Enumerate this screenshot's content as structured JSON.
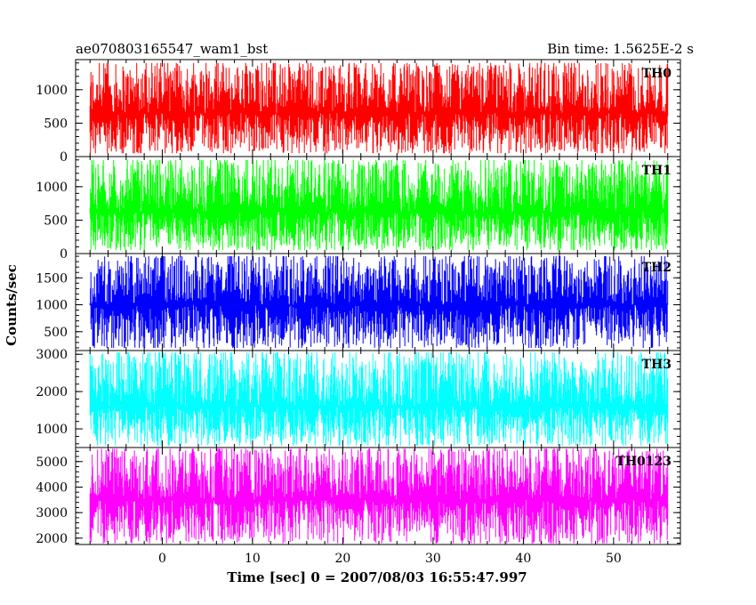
{
  "chart_data": {
    "type": "line",
    "title_left": "ae070803165547_wam1_bst",
    "title_right": "Bin time: 1.5625E-2 s",
    "xlabel": "Time [sec] 0 = 2007/08/03 16:55:47.997",
    "ylabel": "Counts/sec",
    "x_range": [
      -9.6,
      57.4
    ],
    "data_x_range": [
      -8,
      56
    ],
    "x_ticks": [
      0,
      10,
      20,
      30,
      40,
      50
    ],
    "x_tick_labels": [
      "0",
      "10",
      "20",
      "30",
      "40",
      "50"
    ],
    "panels": [
      {
        "name": "TH0",
        "color": "#ff0000",
        "ylim": [
          0,
          1450
        ],
        "yticks": [
          0,
          500,
          1000
        ],
        "ytick_labels": [
          "0",
          "500",
          "1000"
        ],
        "level_mean": 650,
        "level_low": 50,
        "level_high": 1400
      },
      {
        "name": "TH1",
        "color": "#00ff00",
        "ylim": [
          0,
          1450
        ],
        "yticks": [
          0,
          500,
          1000
        ],
        "ytick_labels": [
          "0",
          "500",
          "1000"
        ],
        "level_mean": 620,
        "level_low": 50,
        "level_high": 1400
      },
      {
        "name": "TH2",
        "color": "#0000ff",
        "ylim": [
          150,
          1950
        ],
        "yticks": [
          500,
          1000,
          1500
        ],
        "ytick_labels": [
          "500",
          "1000",
          "1500"
        ],
        "level_mean": 1000,
        "level_low": 200,
        "level_high": 1900
      },
      {
        "name": "TH3",
        "color": "#00ffff",
        "ylim": [
          500,
          3100
        ],
        "yticks": [
          1000,
          2000,
          3000
        ],
        "ytick_labels": [
          "1000",
          "2000",
          "3000"
        ],
        "level_mean": 1600,
        "level_low": 550,
        "level_high": 3050
      },
      {
        "name": "TH0123",
        "color": "#ff00ff",
        "ylim": [
          1750,
          5550
        ],
        "yticks": [
          2000,
          3000,
          4000,
          5000
        ],
        "ytick_labels": [
          "2000",
          "3000",
          "4000",
          "5000"
        ],
        "level_mean": 3500,
        "level_low": 1800,
        "level_high": 5500
      }
    ]
  }
}
